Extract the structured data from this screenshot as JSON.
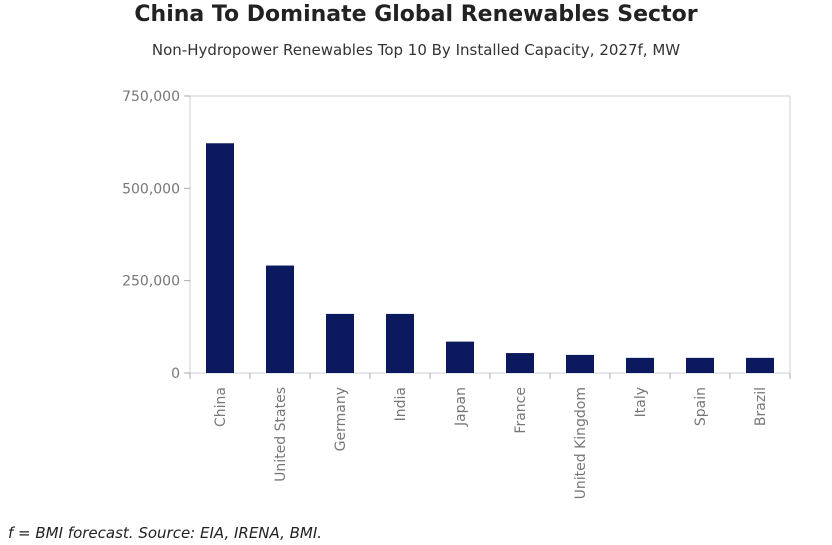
{
  "chart_data": {
    "type": "bar",
    "title": "China To Dominate Global Renewables Sector",
    "subtitle": "Non-Hydropower Renewables Top 10 By Installed Capacity, 2027f, MW",
    "xlabel": "",
    "ylabel": "",
    "ylim": [
      0,
      750000
    ],
    "yticks": [
      0,
      250000,
      500000,
      750000
    ],
    "ytick_labels": [
      "0",
      "250,000",
      "500,000",
      "750,000"
    ],
    "grid": false,
    "categories": [
      "China",
      "United States",
      "Germany",
      "India",
      "Japan",
      "France",
      "United Kingdom",
      "Italy",
      "Spain",
      "Brazil"
    ],
    "values": [
      622000,
      291000,
      160000,
      160000,
      85000,
      54000,
      49000,
      41000,
      41000,
      41000
    ],
    "bar_color": "#0b1a5e"
  },
  "footnote": "f = BMI forecast. Source: EIA, IRENA, BMI."
}
